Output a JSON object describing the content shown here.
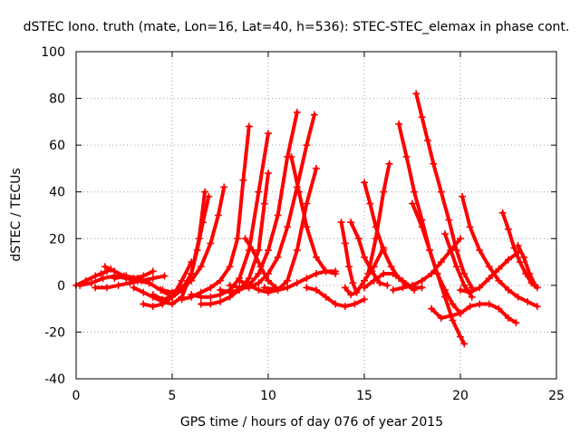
{
  "chart_data": {
    "type": "line",
    "title": "dSTEC Iono. truth (mate, Lon=16, Lat=40, h=536): STEC-STEC_elemax in phase cont.",
    "xlabel": "GPS time / hours of day 076 of year 2015",
    "ylabel": "dSTEC  / TECUs",
    "xlim": [
      0,
      25
    ],
    "ylim": [
      -40,
      100
    ],
    "xticks": [
      "0",
      "5",
      "10",
      "15",
      "20",
      "25"
    ],
    "yticks": [
      "-40",
      "-20",
      "0",
      "20",
      "40",
      "60",
      "80",
      "100"
    ],
    "grid": true,
    "legend": "none",
    "series_color": "#ff0000",
    "marker": "plus",
    "series": [
      {
        "x": [
          0.0,
          0.5,
          1.0,
          1.3,
          1.6,
          1.8
        ],
        "y": [
          0,
          2,
          4,
          5,
          6,
          7
        ]
      },
      {
        "x": [
          0.2,
          0.8,
          1.4,
          2.0,
          2.6,
          3.2,
          3.8
        ],
        "y": [
          0,
          1,
          3,
          4,
          3,
          2,
          1
        ]
      },
      {
        "x": [
          1.5,
          2.0,
          2.5,
          3.0,
          3.5,
          4.0
        ],
        "y": [
          8,
          6,
          4,
          3,
          4,
          6
        ]
      },
      {
        "x": [
          1.0,
          1.6,
          2.2,
          2.8,
          3.4,
          4.0,
          4.6
        ],
        "y": [
          -1,
          -1,
          0,
          1,
          2,
          3,
          4
        ]
      },
      {
        "x": [
          2.0,
          2.6,
          3.2,
          3.8,
          4.4,
          5.0
        ],
        "y": [
          3,
          4,
          3,
          1,
          -2,
          -5
        ]
      },
      {
        "x": [
          3.0,
          3.5,
          4.0,
          4.5,
          5.0,
          5.5,
          6.0,
          6.4,
          6.7
        ],
        "y": [
          -1,
          -3,
          -5,
          -7,
          -8,
          -5,
          5,
          20,
          40
        ]
      },
      {
        "x": [
          4.0,
          4.5,
          5.0,
          5.5,
          6.0,
          6.3,
          6.6,
          6.9
        ],
        "y": [
          -4,
          -6,
          -5,
          -2,
          5,
          15,
          27,
          38
        ]
      },
      {
        "x": [
          3.5,
          4.0,
          4.5,
          5.0,
          5.5,
          6.0
        ],
        "y": [
          -8,
          -9,
          -8,
          -5,
          2,
          10
        ]
      },
      {
        "x": [
          4.5,
          5.0,
          5.5,
          6.0,
          6.5,
          7.0,
          7.4,
          7.7
        ],
        "y": [
          -2,
          -3,
          -1,
          2,
          8,
          18,
          30,
          42
        ]
      },
      {
        "x": [
          5.5,
          6.0,
          6.5,
          7.0,
          7.5,
          8.0,
          8.4,
          8.7,
          9.0
        ],
        "y": [
          -6,
          -5,
          -3,
          -1,
          2,
          8,
          20,
          45,
          68
        ]
      },
      {
        "x": [
          6.0,
          6.5,
          7.0,
          7.5,
          8.0,
          8.5,
          9.0,
          9.5,
          10.0
        ],
        "y": [
          -4,
          -5,
          -5,
          -4,
          -2,
          3,
          15,
          40,
          65
        ]
      },
      {
        "x": [
          6.5,
          7.0,
          7.5,
          8.0,
          8.5,
          9.0,
          9.5,
          9.8,
          10.0
        ],
        "y": [
          -8,
          -8,
          -7,
          -5,
          -2,
          3,
          15,
          35,
          48
        ]
      },
      {
        "x": [
          7.5,
          8.0,
          8.5,
          9.0,
          9.5,
          10.0,
          10.5,
          11.0,
          11.5
        ],
        "y": [
          -2,
          -3,
          -2,
          0,
          5,
          15,
          30,
          55,
          74
        ]
      },
      {
        "x": [
          8.0,
          8.5,
          9.0,
          9.5,
          10.0,
          10.5,
          11.0,
          11.5,
          12.0,
          12.4
        ],
        "y": [
          0,
          -1,
          -1,
          1,
          5,
          12,
          25,
          42,
          60,
          73
        ]
      },
      {
        "x": [
          8.5,
          9.0,
          9.5,
          10.0,
          10.5,
          11.0,
          11.5,
          12.0,
          12.5
        ],
        "y": [
          2,
          0,
          -2,
          -3,
          -2,
          2,
          15,
          35,
          50
        ]
      },
      {
        "x": [
          8.8,
          9.2,
          9.6,
          10.0,
          10.4
        ],
        "y": [
          20,
          15,
          8,
          2,
          -1
        ]
      },
      {
        "x": [
          11.2,
          11.6,
          12.0,
          12.5,
          13.0,
          13.5
        ],
        "y": [
          55,
          40,
          25,
          12,
          6,
          5
        ]
      },
      {
        "x": [
          9.8,
          10.5,
          11.0,
          11.5,
          12.0,
          12.5,
          13.0,
          13.5
        ],
        "y": [
          -1,
          -2,
          -1,
          1,
          3,
          5,
          6,
          6
        ]
      },
      {
        "x": [
          12.0,
          12.5,
          13.0,
          13.5,
          14.0,
          14.5,
          15.0
        ],
        "y": [
          -1,
          -2,
          -5,
          -8,
          -9,
          -8,
          -6
        ]
      },
      {
        "x": [
          13.8,
          14.0,
          14.2,
          14.4,
          14.6
        ],
        "y": [
          27,
          18,
          8,
          1,
          -3
        ]
      },
      {
        "x": [
          14.0,
          14.3,
          14.6,
          15.0,
          15.5,
          16.0
        ],
        "y": [
          -1,
          -4,
          -3,
          2,
          8,
          16
        ]
      },
      {
        "x": [
          14.3,
          14.7,
          15.0,
          15.4,
          15.8,
          16.2
        ],
        "y": [
          27,
          20,
          12,
          6,
          1,
          0
        ]
      },
      {
        "x": [
          15.0,
          15.3,
          15.6,
          16.0,
          16.4,
          16.8,
          17.2,
          17.6
        ],
        "y": [
          44,
          35,
          25,
          15,
          8,
          3,
          0,
          -2
        ]
      },
      {
        "x": [
          15.2,
          15.6,
          16.0,
          16.3
        ],
        "y": [
          5,
          20,
          40,
          52
        ]
      },
      {
        "x": [
          15.0,
          15.5,
          16.0,
          16.5,
          17.0,
          17.5,
          18.0
        ],
        "y": [
          -1,
          2,
          5,
          5,
          2,
          -1,
          -1
        ]
      },
      {
        "x": [
          16.8,
          17.2,
          17.6,
          18.0,
          18.4,
          18.8,
          19.2,
          19.6,
          20.0,
          20.2
        ],
        "y": [
          69,
          55,
          40,
          28,
          15,
          5,
          -5,
          -15,
          -22,
          -25
        ]
      },
      {
        "x": [
          17.5,
          18.0,
          18.4,
          18.8,
          19.2,
          19.6,
          20.0
        ],
        "y": [
          35,
          25,
          15,
          5,
          -2,
          -8,
          -12
        ]
      },
      {
        "x": [
          17.7,
          18.0,
          18.3,
          18.6,
          19.0,
          19.4,
          19.8,
          20.2,
          20.6
        ],
        "y": [
          82,
          72,
          62,
          52,
          40,
          28,
          15,
          5,
          -1
        ]
      },
      {
        "x": [
          16.5,
          17.0,
          17.5,
          18.0,
          18.5,
          19.0,
          19.5,
          20.0
        ],
        "y": [
          -2,
          -1,
          0,
          2,
          5,
          10,
          15,
          20
        ]
      },
      {
        "x": [
          19.2,
          19.5,
          19.8,
          20.2,
          20.6
        ],
        "y": [
          22,
          15,
          8,
          0,
          -5
        ]
      },
      {
        "x": [
          18.5,
          19.0,
          19.5,
          20.0,
          20.5,
          21.0,
          21.5,
          22.0,
          22.5,
          22.9
        ],
        "y": [
          -10,
          -14,
          -13,
          -12,
          -9,
          -8,
          -8,
          -10,
          -14,
          -16
        ]
      },
      {
        "x": [
          20.1,
          20.5,
          21.0,
          21.5,
          22.0,
          22.5,
          23.0,
          23.5,
          24.0
        ],
        "y": [
          38,
          25,
          15,
          8,
          2,
          -2,
          -5,
          -7,
          -9
        ]
      },
      {
        "x": [
          20.0,
          20.5,
          21.0,
          21.5,
          22.0,
          22.5,
          23.0
        ],
        "y": [
          -2,
          -3,
          -1,
          3,
          7,
          11,
          14
        ]
      },
      {
        "x": [
          22.2,
          22.5,
          22.8,
          23.1,
          23.4,
          23.7,
          24.0
        ],
        "y": [
          31,
          24,
          16,
          10,
          5,
          1,
          -1
        ]
      },
      {
        "x": [
          23.0,
          23.3,
          23.6,
          23.9
        ],
        "y": [
          17,
          12,
          5,
          0
        ]
      }
    ]
  }
}
